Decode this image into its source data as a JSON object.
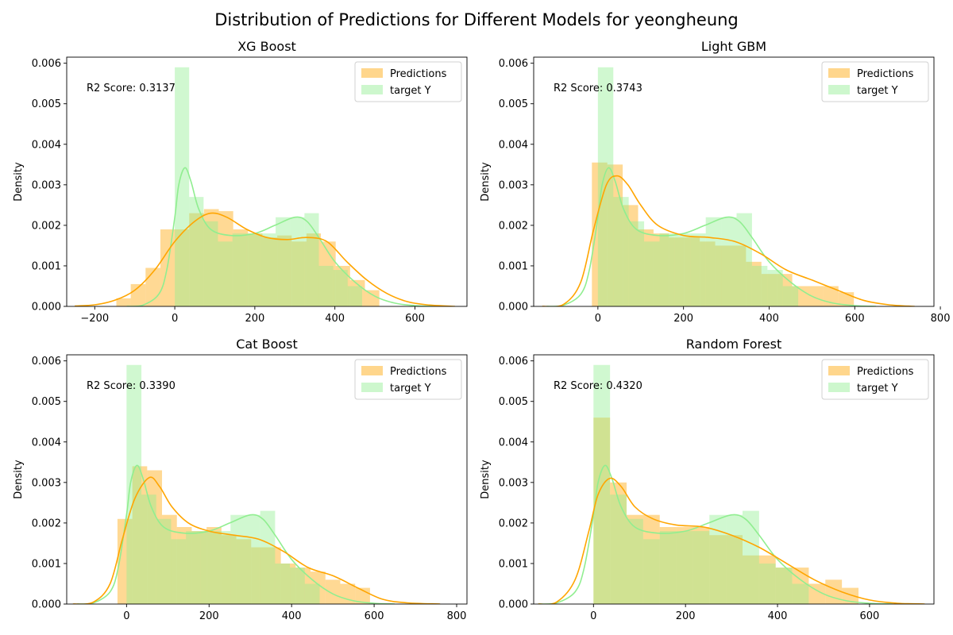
{
  "figure": {
    "title": "Distribution of Predictions for Different Models for yeongheung",
    "colors": {
      "predictions": "#FFA500",
      "target": "#90EE90"
    }
  },
  "chart_data": [
    {
      "type": "histogram-kde",
      "title": "XG Boost",
      "ylabel": "Density",
      "annotation": "R2 Score: 0.3137",
      "legend": [
        "Predictions",
        "target Y"
      ],
      "legend_loc": "upper right",
      "xlim": [
        -270,
        730
      ],
      "ylim": [
        0,
        0.00615
      ],
      "xticks": [
        -200,
        0,
        200,
        400,
        600
      ],
      "yticks": [
        0,
        0.001,
        0.002,
        0.003,
        0.004,
        0.005,
        0.006
      ],
      "pred_hist": {
        "edges": [
          -146,
          -110,
          -73,
          -36,
          0,
          36,
          73,
          110,
          146,
          183,
          219,
          256,
          292,
          329,
          365,
          402,
          438,
          475,
          511
        ],
        "values": [
          0.0002,
          0.00055,
          0.00095,
          0.0019,
          0.0019,
          0.0023,
          0.0024,
          0.00235,
          0.0019,
          0.0018,
          0.0017,
          0.00175,
          0.0016,
          0.0018,
          0.0016,
          0.001,
          0.00065,
          0.0004
        ]
      },
      "target_hist": {
        "edges": [
          0,
          36,
          72,
          108,
          144,
          180,
          216,
          252,
          288,
          324,
          360,
          396,
          432,
          468
        ],
        "values": [
          0.0059,
          0.0027,
          0.0021,
          0.0016,
          0.0018,
          0.0018,
          0.0018,
          0.0022,
          0.0022,
          0.0023,
          0.001,
          0.0009,
          0.0005,
          0.0002
        ]
      },
      "pred_kde": {
        "x": [
          -250,
          -200,
          -150,
          -100,
          -50,
          0,
          50,
          90,
          130,
          180,
          230,
          280,
          330,
          380,
          430,
          480,
          530,
          580,
          630,
          700
        ],
        "y": [
          1e-05,
          4e-05,
          0.00015,
          0.0004,
          0.0009,
          0.0016,
          0.0021,
          0.0023,
          0.0022,
          0.0019,
          0.0017,
          0.00165,
          0.0017,
          0.0016,
          0.0011,
          0.00065,
          0.00032,
          0.00012,
          4e-05,
          0.0
        ]
      },
      "target_kde": {
        "x": [
          -120,
          -80,
          -40,
          -20,
          0,
          10,
          25,
          40,
          60,
          90,
          140,
          200,
          250,
          300,
          330,
          360,
          400,
          450,
          500,
          550,
          600,
          650
        ],
        "y": [
          0.0,
          3e-05,
          0.0003,
          0.0009,
          0.0022,
          0.003,
          0.00342,
          0.0031,
          0.0024,
          0.0019,
          0.00175,
          0.0018,
          0.002,
          0.0022,
          0.0021,
          0.0017,
          0.0011,
          0.0006,
          0.00025,
          8e-05,
          2e-05,
          0.0
        ]
      }
    },
    {
      "type": "histogram-kde",
      "title": "Light GBM",
      "ylabel": "Density",
      "annotation": "R2 Score: 0.3743",
      "legend": [
        "Predictions",
        "target Y"
      ],
      "legend_loc": "upper right",
      "xlim": [
        -150,
        785
      ],
      "ylim": [
        0,
        0.00615
      ],
      "xticks": [
        0,
        200,
        400,
        600,
        800
      ],
      "yticks": [
        0,
        0.001,
        0.002,
        0.003,
        0.004,
        0.005,
        0.006
      ],
      "pred_hist": {
        "edges": [
          -14,
          22,
          58,
          94,
          130,
          166,
          202,
          238,
          274,
          310,
          346,
          382,
          418,
          454,
          490,
          526,
          562,
          598
        ],
        "values": [
          0.00355,
          0.0035,
          0.0025,
          0.0019,
          0.0018,
          0.0017,
          0.0017,
          0.0016,
          0.0015,
          0.0015,
          0.0011,
          0.0008,
          0.0008,
          0.0005,
          0.0005,
          0.0005,
          0.00035
        ]
      },
      "target_hist": {
        "edges": [
          0,
          36,
          72,
          108,
          144,
          180,
          216,
          252,
          288,
          324,
          360,
          396,
          432,
          468
        ],
        "values": [
          0.0059,
          0.0027,
          0.0021,
          0.0016,
          0.0018,
          0.0018,
          0.0018,
          0.0022,
          0.0022,
          0.0023,
          0.001,
          0.0009,
          0.0005,
          0.0002
        ]
      },
      "pred_kde": {
        "x": [
          -130,
          -80,
          -40,
          -10,
          20,
          45,
          70,
          100,
          140,
          200,
          260,
          320,
          380,
          440,
          500,
          560,
          620,
          680,
          740
        ],
        "y": [
          0.0,
          5e-05,
          0.0006,
          0.0019,
          0.003,
          0.00322,
          0.003,
          0.0025,
          0.002,
          0.00175,
          0.0017,
          0.0016,
          0.0013,
          0.0009,
          0.00065,
          0.0004,
          0.00015,
          4e-05,
          0.0
        ]
      },
      "target_kde": {
        "x": [
          -120,
          -80,
          -40,
          -20,
          0,
          10,
          25,
          40,
          60,
          90,
          140,
          200,
          250,
          300,
          330,
          360,
          400,
          450,
          500,
          550,
          600,
          650
        ],
        "y": [
          0.0,
          3e-05,
          0.0003,
          0.0009,
          0.0022,
          0.003,
          0.00342,
          0.0031,
          0.0024,
          0.0019,
          0.00175,
          0.0018,
          0.002,
          0.0022,
          0.0021,
          0.0017,
          0.0011,
          0.0006,
          0.00025,
          8e-05,
          2e-05,
          0.0
        ]
      }
    },
    {
      "type": "histogram-kde",
      "title": "Cat Boost",
      "ylabel": "Density",
      "annotation": "R2 Score: 0.3390",
      "legend": [
        "Predictions",
        "target Y"
      ],
      "legend_loc": "upper right",
      "xlim": [
        -145,
        825
      ],
      "ylim": [
        0,
        0.00615
      ],
      "xticks": [
        0,
        200,
        400,
        600,
        800
      ],
      "yticks": [
        0,
        0.001,
        0.002,
        0.003,
        0.004,
        0.005,
        0.006
      ],
      "pred_hist": {
        "edges": [
          -22,
          14,
          50,
          86,
          122,
          158,
          194,
          230,
          266,
          302,
          338,
          374,
          410,
          446,
          482,
          518,
          554,
          590
        ],
        "values": [
          0.0021,
          0.0034,
          0.0033,
          0.0022,
          0.0019,
          0.0018,
          0.0019,
          0.0017,
          0.0016,
          0.0014,
          0.0014,
          0.001,
          0.0009,
          0.0008,
          0.0006,
          0.0005,
          0.0004
        ]
      },
      "target_hist": {
        "edges": [
          0,
          36,
          72,
          108,
          144,
          180,
          216,
          252,
          288,
          324,
          360,
          396,
          432,
          468
        ],
        "values": [
          0.0059,
          0.0027,
          0.0021,
          0.0016,
          0.0018,
          0.0018,
          0.0018,
          0.0022,
          0.0022,
          0.0023,
          0.001,
          0.0009,
          0.0005,
          0.0002
        ]
      },
      "pred_kde": {
        "x": [
          -130,
          -80,
          -40,
          -10,
          20,
          55,
          80,
          110,
          150,
          200,
          260,
          320,
          380,
          440,
          500,
          560,
          620,
          680,
          760
        ],
        "y": [
          0.0,
          5e-05,
          0.0005,
          0.0016,
          0.0026,
          0.00312,
          0.0029,
          0.0024,
          0.002,
          0.0018,
          0.0017,
          0.0016,
          0.0013,
          0.0009,
          0.0007,
          0.0004,
          0.00012,
          3e-05,
          0.0
        ]
      },
      "target_kde": {
        "x": [
          -120,
          -80,
          -40,
          -20,
          0,
          10,
          25,
          40,
          60,
          90,
          140,
          200,
          250,
          300,
          330,
          360,
          400,
          450,
          500,
          550,
          600,
          650
        ],
        "y": [
          0.0,
          3e-05,
          0.0003,
          0.0009,
          0.0022,
          0.003,
          0.00342,
          0.0031,
          0.0024,
          0.0019,
          0.00175,
          0.0018,
          0.002,
          0.0022,
          0.0021,
          0.0017,
          0.0011,
          0.0006,
          0.00025,
          8e-05,
          2e-05,
          0.0
        ]
      }
    },
    {
      "type": "histogram-kde",
      "title": "Random Forest",
      "ylabel": "Density",
      "annotation": "R2 Score: 0.4320",
      "legend": [
        "Predictions",
        "target Y"
      ],
      "legend_loc": "upper right",
      "xlim": [
        -130,
        740
      ],
      "ylim": [
        0,
        0.00615
      ],
      "xticks": [
        0,
        200,
        400,
        600
      ],
      "yticks": [
        0,
        0.001,
        0.002,
        0.003,
        0.004,
        0.005,
        0.006
      ],
      "pred_hist": {
        "edges": [
          0,
          36,
          72,
          108,
          144,
          180,
          216,
          252,
          288,
          324,
          360,
          396,
          432,
          468,
          504,
          540,
          576
        ],
        "values": [
          0.0046,
          0.003,
          0.0022,
          0.0022,
          0.0019,
          0.0019,
          0.0019,
          0.0017,
          0.0017,
          0.0012,
          0.0012,
          0.0009,
          0.0009,
          0.0005,
          0.0006,
          0.0004
        ]
      },
      "target_hist": {
        "edges": [
          0,
          36,
          72,
          108,
          144,
          180,
          216,
          252,
          288,
          324,
          360,
          396,
          432,
          468
        ],
        "values": [
          0.0059,
          0.0027,
          0.0021,
          0.0016,
          0.0018,
          0.0018,
          0.0018,
          0.0022,
          0.0022,
          0.0023,
          0.001,
          0.0009,
          0.0005,
          0.0002
        ]
      },
      "pred_kde": {
        "x": [
          -120,
          -80,
          -40,
          -10,
          10,
          35,
          60,
          90,
          130,
          180,
          240,
          300,
          360,
          420,
          480,
          540,
          600,
          660,
          720
        ],
        "y": [
          0.0,
          5e-05,
          0.0006,
          0.0018,
          0.0027,
          0.0031,
          0.0029,
          0.0024,
          0.0021,
          0.00195,
          0.0019,
          0.0017,
          0.0014,
          0.001,
          0.0006,
          0.0003,
          0.0001,
          2e-05,
          0.0
        ]
      },
      "target_kde": {
        "x": [
          -120,
          -80,
          -40,
          -20,
          0,
          10,
          25,
          40,
          60,
          90,
          140,
          200,
          250,
          300,
          330,
          360,
          400,
          450,
          500,
          550,
          600,
          650
        ],
        "y": [
          0.0,
          3e-05,
          0.0003,
          0.0009,
          0.0022,
          0.003,
          0.00342,
          0.0031,
          0.0024,
          0.0019,
          0.00175,
          0.0018,
          0.002,
          0.0022,
          0.0021,
          0.0017,
          0.0011,
          0.0006,
          0.00025,
          8e-05,
          2e-05,
          0.0
        ]
      }
    }
  ]
}
